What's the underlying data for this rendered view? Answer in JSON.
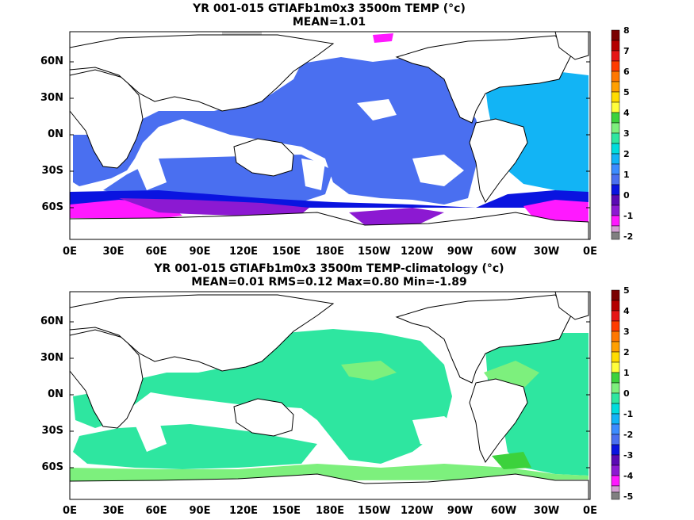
{
  "panels": [
    {
      "title_line1": "YR 001-015 GTIAFb1m0x3 3500m TEMP (°c)",
      "title_line2": "MEAN=1.01",
      "colorbar_ticks": [
        "8",
        "7",
        "6",
        "5",
        "4",
        "3",
        "2",
        "1",
        "0",
        "-1",
        "-2"
      ]
    },
    {
      "title_line1": "YR 001-015 GTIAFb1m0x3 3500m TEMP-climatology (°c)",
      "title_line2": "MEAN=0.01   RMS=0.12   Max=0.80   Min=-1.89",
      "colorbar_ticks": [
        "5",
        "4",
        "3",
        "2",
        "1",
        "0",
        "-1",
        "-2",
        "-3",
        "-4",
        "-5"
      ]
    }
  ],
  "axes": {
    "lat_labels": [
      "60N",
      "30N",
      "0N",
      "30S",
      "60S"
    ],
    "lon_labels": [
      "0E",
      "30E",
      "60E",
      "90E",
      "120E",
      "150E",
      "180E",
      "150W",
      "120W",
      "90W",
      "60W",
      "30W",
      "0E"
    ]
  },
  "colors": {
    "land": "#ffffff",
    "coast": "#000000",
    "panel1_ocean_main": "#4a6ff0",
    "panel1_atlantic": "#12b4f5",
    "panel1_deep_blue": "#0a14e0",
    "panel1_magenta": "#ff19ff",
    "panel1_purple": "#8c19d2",
    "panel2_main": "#2ee6a0",
    "panel2_light": "#7df07d",
    "panel2_bright": "#3cd23c"
  }
}
